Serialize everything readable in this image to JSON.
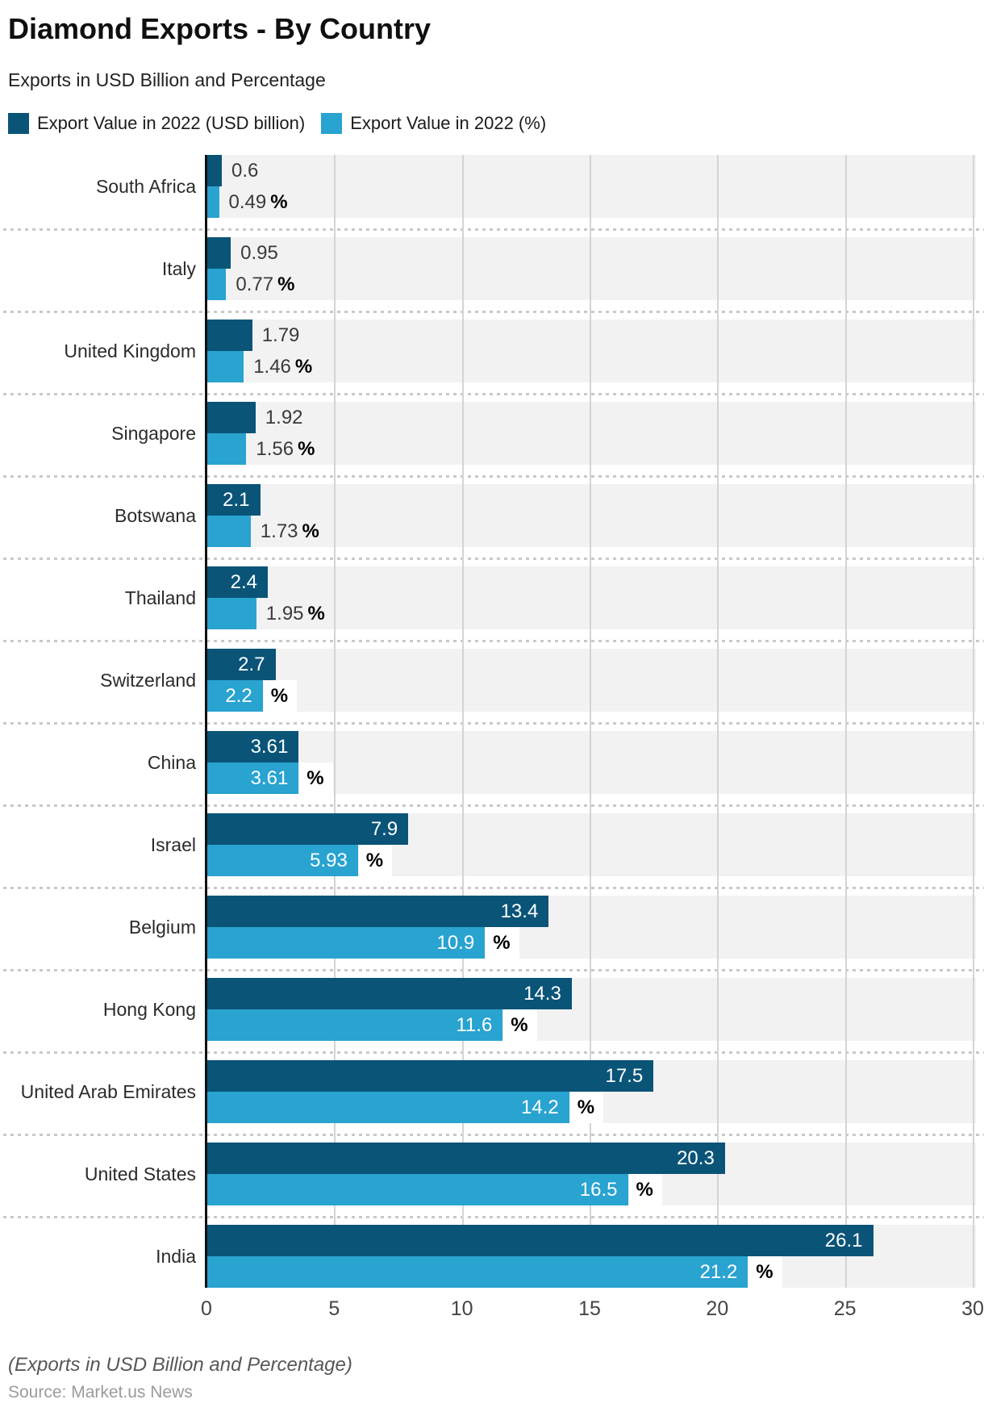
{
  "title": "Diamond Exports - By Country",
  "subtitle": "Exports in USD Billion and Percentage",
  "legend": {
    "items": [
      {
        "label": "Export Value in 2022 (USD billion)",
        "color": "#0a5478"
      },
      {
        "label": "Export Value in 2022 (%)",
        "color": "#29a3d0"
      }
    ]
  },
  "chart_data": {
    "type": "bar",
    "orientation": "horizontal",
    "title": "Diamond Exports - By Country",
    "subtitle": "Exports in USD Billion and Percentage",
    "categories": [
      "South Africa",
      "Italy",
      "United Kingdom",
      "Singapore",
      "Botswana",
      "Thailand",
      "Switzerland",
      "China",
      "Israel",
      "Belgium",
      "Hong Kong",
      "United Arab Emirates",
      "United States",
      "India"
    ],
    "series": [
      {
        "name": "Export Value in 2022 (USD billion)",
        "color": "#0a5478",
        "values": [
          0.6,
          0.95,
          1.79,
          1.92,
          2.1,
          2.4,
          2.7,
          3.61,
          7.9,
          13.4,
          14.3,
          17.5,
          20.3,
          26.1
        ]
      },
      {
        "name": "Export Value in 2022 (%)",
        "color": "#29a3d0",
        "values": [
          0.49,
          0.77,
          1.46,
          1.56,
          1.73,
          1.95,
          2.2,
          3.61,
          5.93,
          10.9,
          11.6,
          14.2,
          16.5,
          21.2
        ]
      }
    ],
    "value_labels": [
      "0.6",
      "0.95",
      "1.79",
      "1.92",
      "2.1",
      "2.4",
      "2.7",
      "3.61",
      "7.9",
      "13.4",
      "14.3",
      "17.5",
      "20.3",
      "26.1"
    ],
    "pct_labels": [
      "0.49",
      "0.77",
      "1.46",
      "1.56",
      "1.73",
      "1.95",
      "2.2",
      "3.61",
      "5.93",
      "10.9",
      "11.6",
      "14.2",
      "16.5",
      "21.2"
    ],
    "pct_suffix": "%",
    "value_label_inside": [
      false,
      false,
      false,
      false,
      true,
      true,
      true,
      true,
      true,
      true,
      true,
      true,
      true,
      true
    ],
    "pct_label_inside": [
      false,
      false,
      false,
      false,
      false,
      false,
      true,
      true,
      true,
      true,
      true,
      true,
      true,
      true
    ],
    "xlim": [
      0,
      30
    ],
    "x_ticks": [
      0,
      5,
      10,
      15,
      20,
      25,
      30
    ],
    "grid": "vertical",
    "legend_position": "top",
    "row_band_color": "#f2f2f2",
    "gridline_color": "#d4d4d4",
    "axis_color": "#111111"
  },
  "x_axis": {
    "tick_labels": [
      "0",
      "5",
      "10",
      "15",
      "20",
      "25",
      "30"
    ]
  },
  "footer": {
    "note": "(Exports in USD Billion and Percentage)",
    "source": "Source: Market.us News"
  }
}
